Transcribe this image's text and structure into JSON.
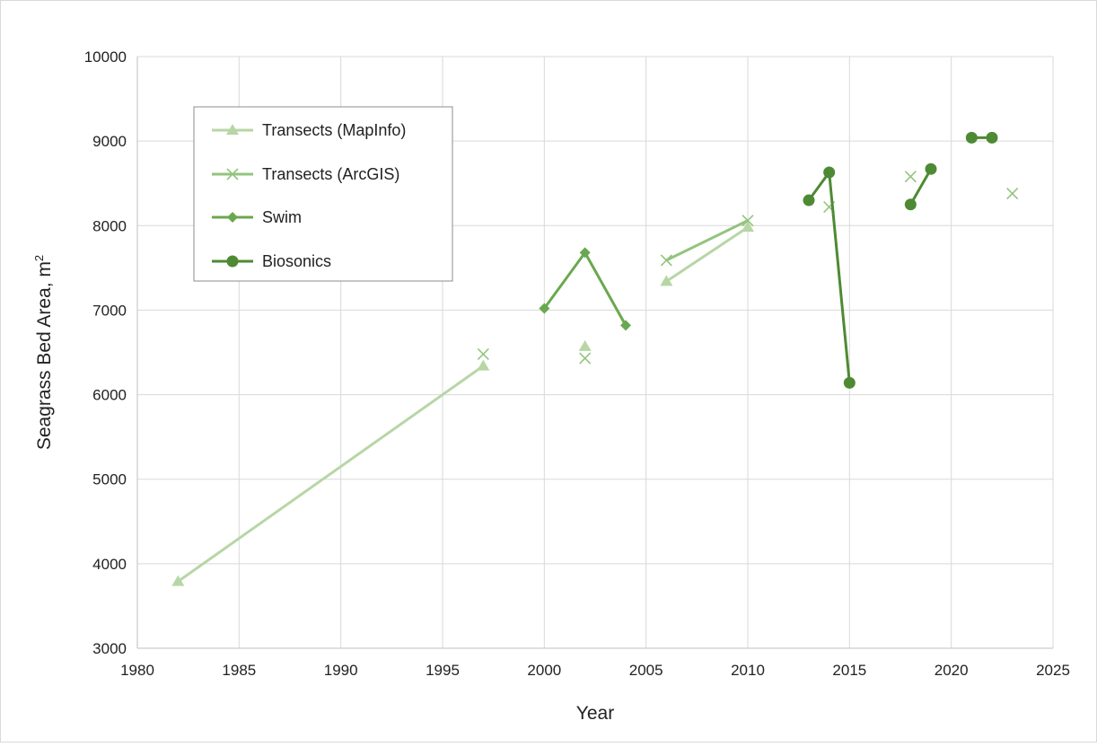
{
  "chart_data": {
    "type": "line",
    "title": "",
    "xlabel": "Year",
    "ylabel": "Seagrass Bed Area, m",
    "ylabel_superscript": "2",
    "xlim": [
      1980,
      2025
    ],
    "ylim": [
      3000,
      10000
    ],
    "x_ticks": [
      1980,
      1985,
      1990,
      1995,
      2000,
      2005,
      2010,
      2015,
      2020,
      2025
    ],
    "y_ticks": [
      3000,
      4000,
      5000,
      6000,
      7000,
      8000,
      9000,
      10000
    ],
    "grid": true,
    "legend_position": "top-left",
    "series": [
      {
        "name": "Transects (MapInfo)",
        "marker": "triangle",
        "color": "#b7d6a6",
        "segments": [
          [
            [
              1982,
              3790
            ],
            [
              1997,
              6340
            ]
          ],
          [
            [
              2002,
              6570
            ]
          ],
          [
            [
              2006,
              7340
            ],
            [
              2010,
              7980
            ]
          ]
        ]
      },
      {
        "name": "Transects (ArcGIS)",
        "marker": "x",
        "color": "#93c47d",
        "segments": [
          [
            [
              1997,
              6480
            ]
          ],
          [
            [
              2002,
              6430
            ]
          ],
          [
            [
              2006,
              7590
            ],
            [
              2010,
              8060
            ]
          ],
          [
            [
              2014,
              8220
            ]
          ],
          [
            [
              2018,
              8580
            ]
          ],
          [
            [
              2023,
              8380
            ]
          ]
        ]
      },
      {
        "name": "Swim",
        "marker": "diamond",
        "color": "#6aa84f",
        "segments": [
          [
            [
              2000,
              7020
            ],
            [
              2002,
              7680
            ],
            [
              2004,
              6820
            ]
          ]
        ]
      },
      {
        "name": "Biosonics",
        "marker": "circle",
        "color": "#4e8a34",
        "segments": [
          [
            [
              2013,
              8300
            ],
            [
              2014,
              8630
            ],
            [
              2015,
              6140
            ]
          ],
          [
            [
              2018,
              8250
            ],
            [
              2019,
              8670
            ]
          ],
          [
            [
              2021,
              9040
            ],
            [
              2022,
              9040
            ]
          ]
        ]
      }
    ]
  }
}
